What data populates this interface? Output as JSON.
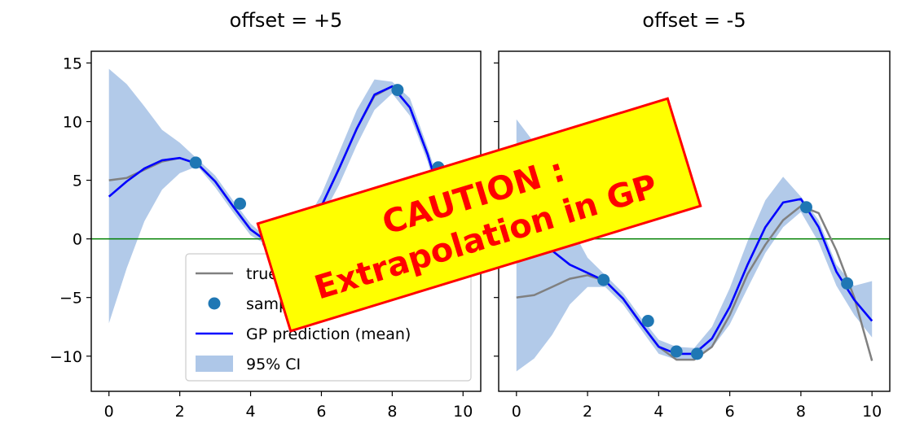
{
  "chart_data": [
    {
      "type": "line",
      "title": "offset = +5",
      "xlabel": "",
      "ylabel": "",
      "xlim": [
        -0.5,
        10.5
      ],
      "ylim": [
        -13,
        16
      ],
      "xticks": [
        0,
        2,
        4,
        6,
        8,
        10
      ],
      "yticks": [
        -10,
        -5,
        0,
        5,
        10,
        15
      ],
      "ytick_labels": [
        "−10",
        "−5",
        "0",
        "5",
        "10",
        "15"
      ],
      "grid": false,
      "hline": 0,
      "legend_position": "lower-right",
      "series": [
        {
          "name": "true function",
          "kind": "line",
          "color": "#808080",
          "x": [
            0,
            0.5,
            1,
            1.5,
            2,
            2.5,
            3,
            3.5,
            4,
            4.5,
            5,
            5.5,
            6,
            6.5,
            7,
            7.5,
            8,
            8.5,
            9,
            9.5,
            10
          ],
          "y": [
            5.0,
            5.2,
            5.9,
            6.6,
            6.9,
            6.4,
            4.9,
            2.8,
            0.8,
            -0.3,
            -0.5,
            0.6,
            2.8,
            6.0,
            9.4,
            12.2,
            13.0,
            11.2,
            7.2,
            2.2,
            -1.0
          ]
        },
        {
          "name": "samples",
          "kind": "scatter",
          "color": "#1f77b4",
          "x": [
            2.45,
            3.7,
            4.5,
            5.08,
            8.15,
            9.3
          ],
          "y": [
            6.5,
            3.0,
            -0.3,
            -0.4,
            12.7,
            6.1
          ]
        },
        {
          "name": "GP prediction (mean)",
          "kind": "line",
          "color": "#0000ff",
          "x": [
            0,
            0.5,
            1,
            1.5,
            2,
            2.5,
            3,
            3.5,
            4,
            4.5,
            5,
            5.5,
            6,
            6.5,
            7,
            7.5,
            8,
            8.5,
            9,
            9.5,
            10
          ],
          "y": [
            3.6,
            4.9,
            6.0,
            6.7,
            6.9,
            6.4,
            4.9,
            2.8,
            0.8,
            -0.3,
            -0.5,
            0.6,
            2.8,
            6.0,
            9.4,
            12.3,
            13.0,
            11.2,
            7.2,
            2.2,
            -1.0
          ]
        },
        {
          "name": "95% CI",
          "kind": "band",
          "color": "#aec7e8",
          "x": [
            0,
            0.5,
            1,
            1.5,
            2,
            2.5,
            3,
            3.5,
            4,
            4.5,
            5,
            5.5,
            6,
            6.5,
            7,
            7.5,
            8,
            8.5,
            9,
            9.5,
            10
          ],
          "lower": [
            -7.2,
            -2.5,
            1.5,
            4.2,
            5.6,
            6.2,
            4.4,
            2.3,
            0.3,
            -0.6,
            -0.8,
            0.2,
            1.8,
            4.6,
            8.0,
            11.0,
            12.4,
            10.5,
            6.6,
            1.2,
            -2.2
          ],
          "upper": [
            14.5,
            13.2,
            11.3,
            9.3,
            8.2,
            6.8,
            5.4,
            3.3,
            1.3,
            0.0,
            -0.2,
            1.1,
            3.8,
            7.4,
            11.0,
            13.6,
            13.4,
            12.0,
            7.8,
            3.2,
            0.2
          ]
        }
      ]
    },
    {
      "type": "line",
      "title": "offset = -5",
      "xlabel": "",
      "ylabel": "",
      "xlim": [
        -0.5,
        10.5
      ],
      "ylim": [
        -13,
        16
      ],
      "xticks": [
        0,
        2,
        4,
        6,
        8,
        10
      ],
      "grid": false,
      "hline": 0,
      "series": [
        {
          "name": "true function",
          "kind": "line",
          "color": "#808080",
          "x": [
            0,
            0.5,
            1,
            1.5,
            2,
            2.5,
            3,
            3.5,
            4,
            4.5,
            5,
            5.5,
            6,
            6.5,
            7,
            7.5,
            8,
            8.5,
            9,
            9.5,
            10
          ],
          "y": [
            -5.0,
            -4.8,
            -4.1,
            -3.4,
            -3.1,
            -3.6,
            -5.1,
            -7.2,
            -9.2,
            -10.3,
            -10.3,
            -9.2,
            -6.5,
            -3.0,
            -0.5,
            1.6,
            2.8,
            2.2,
            -1.0,
            -5.0,
            -10.4
          ]
        },
        {
          "name": "samples",
          "kind": "scatter",
          "color": "#1f77b4",
          "x": [
            2.45,
            3.7,
            4.5,
            5.08,
            8.15,
            9.3
          ],
          "y": [
            -3.5,
            -7.0,
            -9.6,
            -9.8,
            2.7,
            -3.8
          ]
        },
        {
          "name": "GP prediction (mean)",
          "kind": "line",
          "color": "#0000ff",
          "x": [
            0,
            0.5,
            1,
            1.5,
            2,
            2.5,
            3,
            3.5,
            4,
            4.5,
            5,
            5.5,
            6,
            6.5,
            7,
            7.5,
            8,
            8.5,
            9,
            9.5,
            10
          ],
          "y": [
            3.4,
            0.8,
            -1.0,
            -2.2,
            -2.9,
            -3.6,
            -5.1,
            -7.2,
            -9.2,
            -9.8,
            -9.8,
            -8.5,
            -5.8,
            -2.2,
            1.0,
            3.1,
            3.4,
            1.0,
            -2.8,
            -5.2,
            -7.0
          ]
        },
        {
          "name": "95% CI",
          "kind": "band",
          "color": "#aec7e8",
          "x": [
            0,
            0.5,
            1,
            1.5,
            2,
            2.5,
            3,
            3.5,
            4,
            4.5,
            5,
            5.5,
            6,
            6.5,
            7,
            7.5,
            8,
            8.5,
            9,
            9.5,
            10
          ],
          "lower": [
            -11.3,
            -10.2,
            -8.2,
            -5.6,
            -4.1,
            -4.1,
            -5.6,
            -7.7,
            -9.8,
            -10.3,
            -10.3,
            -9.3,
            -7.3,
            -4.2,
            -1.2,
            1.0,
            2.3,
            -0.3,
            -4.0,
            -6.5,
            -8.4
          ],
          "upper": [
            10.2,
            8.2,
            5.2,
            1.2,
            -1.6,
            -3.1,
            -4.6,
            -6.7,
            -8.6,
            -9.2,
            -9.3,
            -7.5,
            -4.2,
            -0.2,
            3.3,
            5.3,
            3.6,
            1.6,
            -2.2,
            -4.0,
            -3.6
          ]
        }
      ]
    }
  ],
  "legend": {
    "entries": [
      {
        "label": "true function",
        "kind": "line",
        "color": "#808080"
      },
      {
        "label": "samples",
        "kind": "scatter",
        "color": "#1f77b4"
      },
      {
        "label": "GP prediction (mean)",
        "kind": "line",
        "color": "#0000ff"
      },
      {
        "label": "95% CI",
        "kind": "band",
        "color": "#aec7e8"
      }
    ]
  },
  "caution": {
    "line1": "CAUTION :",
    "line2": "Extrapolation in GP",
    "background": "#ffff00",
    "border": "#ff0000",
    "text_color": "#ff0000"
  },
  "colors": {
    "hline": "#008000"
  }
}
